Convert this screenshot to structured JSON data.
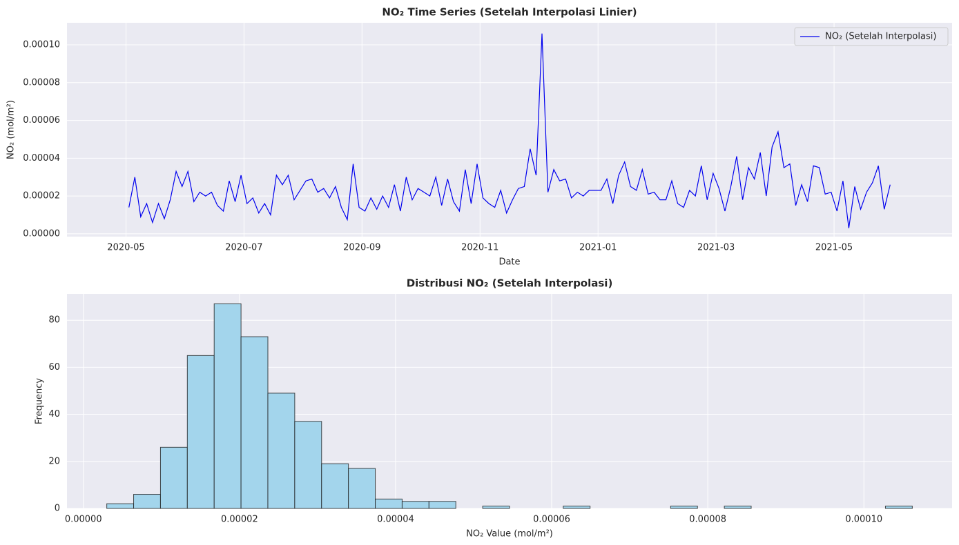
{
  "chart_data": [
    {
      "type": "line",
      "title": "NO₂ Time Series (Setelah Interpolasi Linier)",
      "xlabel": "Date",
      "ylabel": "NO₂ (mol/m²)",
      "x": [
        "2020-05",
        "2020-05",
        "2020-05",
        "2020-05",
        "2020-05",
        "2020-05",
        "2020-05",
        "2020-05",
        "2020-05",
        "2020-05",
        "2020-06",
        "2020-06",
        "2020-06",
        "2020-06",
        "2020-06",
        "2020-06",
        "2020-06",
        "2020-06",
        "2020-06",
        "2020-06",
        "2020-07",
        "2020-07",
        "2020-07",
        "2020-07",
        "2020-07",
        "2020-07",
        "2020-07",
        "2020-07",
        "2020-07",
        "2020-07",
        "2020-08",
        "2020-08",
        "2020-08",
        "2020-08",
        "2020-08",
        "2020-08",
        "2020-08",
        "2020-08",
        "2020-08",
        "2020-08",
        "2020-09",
        "2020-09",
        "2020-09",
        "2020-09",
        "2020-09",
        "2020-09",
        "2020-09",
        "2020-09",
        "2020-09",
        "2020-09",
        "2020-10",
        "2020-10",
        "2020-10",
        "2020-10",
        "2020-10",
        "2020-10",
        "2020-10",
        "2020-10",
        "2020-10",
        "2020-10",
        "2020-11",
        "2020-11",
        "2020-11",
        "2020-11",
        "2020-11",
        "2020-11",
        "2020-11",
        "2020-11",
        "2020-11",
        "2020-11",
        "2020-12",
        "2020-12",
        "2020-12",
        "2020-12",
        "2020-12",
        "2020-12",
        "2020-12",
        "2020-12",
        "2020-12",
        "2020-12",
        "2021-01",
        "2021-01",
        "2021-01",
        "2021-01",
        "2021-01",
        "2021-01",
        "2021-01",
        "2021-01",
        "2021-01",
        "2021-01",
        "2021-02",
        "2021-02",
        "2021-02",
        "2021-02",
        "2021-02",
        "2021-02",
        "2021-02",
        "2021-02",
        "2021-02",
        "2021-02",
        "2021-03",
        "2021-03",
        "2021-03",
        "2021-03",
        "2021-03",
        "2021-03",
        "2021-03",
        "2021-03",
        "2021-03",
        "2021-03",
        "2021-04",
        "2021-04",
        "2021-04",
        "2021-04",
        "2021-04",
        "2021-04",
        "2021-04",
        "2021-04",
        "2021-04",
        "2021-04",
        "2021-05",
        "2021-05",
        "2021-05",
        "2021-05",
        "2021-05",
        "2021-05",
        "2021-05",
        "2021-05",
        "2021-05",
        "2021-05"
      ],
      "series": [
        {
          "name": "NO₂ (Setelah Interpolasi)",
          "color": "#0000ee",
          "values": [
            1.4e-05,
            3e-05,
            9e-06,
            1.6e-05,
            6e-06,
            1.6e-05,
            8e-06,
            1.8e-05,
            3.3e-05,
            2.5e-05,
            3.3e-05,
            1.7e-05,
            2.2e-05,
            2e-05,
            2.2e-05,
            1.5e-05,
            1.2e-05,
            2.8e-05,
            1.7e-05,
            3.1e-05,
            1.6e-05,
            1.9e-05,
            1.1e-05,
            1.6e-05,
            1e-05,
            3.1e-05,
            2.6e-05,
            3.1e-05,
            1.8e-05,
            2.3e-05,
            2.8e-05,
            2.9e-05,
            2.2e-05,
            2.4e-05,
            1.9e-05,
            2.5e-05,
            1.4e-05,
            7.5e-06,
            3.7e-05,
            1.4e-05,
            1.2e-05,
            1.9e-05,
            1.3e-05,
            2e-05,
            1.4e-05,
            2.6e-05,
            1.2e-05,
            3e-05,
            1.8e-05,
            2.4e-05,
            2.2e-05,
            2e-05,
            3e-05,
            1.5e-05,
            2.9e-05,
            1.7e-05,
            1.2e-05,
            3.4e-05,
            1.6e-05,
            3.7e-05,
            1.9e-05,
            1.6e-05,
            1.4e-05,
            2.3e-05,
            1.1e-05,
            1.8e-05,
            2.4e-05,
            2.5e-05,
            4.5e-05,
            3.1e-05,
            0.000106,
            2.2e-05,
            3.4e-05,
            2.8e-05,
            2.9e-05,
            1.9e-05,
            2.2e-05,
            2e-05,
            2.3e-05,
            2.3e-05,
            2.3e-05,
            2.9e-05,
            1.6e-05,
            3.1e-05,
            3.8e-05,
            2.5e-05,
            2.3e-05,
            3.4e-05,
            2.1e-05,
            2.2e-05,
            1.8e-05,
            1.8e-05,
            2.8e-05,
            1.6e-05,
            1.4e-05,
            2.3e-05,
            2e-05,
            3.6e-05,
            1.8e-05,
            3.2e-05,
            2.4e-05,
            1.2e-05,
            2.5e-05,
            4.1e-05,
            1.8e-05,
            3.5e-05,
            2.9e-05,
            4.3e-05,
            2e-05,
            4.6e-05,
            5.4e-05,
            3.5e-05,
            3.7e-05,
            1.5e-05,
            2.6e-05,
            1.7e-05,
            3.6e-05,
            3.5e-05,
            2.1e-05,
            2.2e-05,
            1.2e-05,
            2.8e-05,
            3e-06,
            2.5e-05,
            1.3e-05,
            2.2e-05,
            2.7e-05,
            3.6e-05,
            1.3e-05,
            2.6e-05
          ]
        }
      ],
      "xlim": [
        "2020-04",
        "2021-07"
      ],
      "xticks": [
        "2020-05",
        "2020-07",
        "2020-09",
        "2020-11",
        "2021-01",
        "2021-03",
        "2021-05"
      ],
      "ylim": [
        -1.5e-06,
        0.0001117
      ],
      "yticks": [
        {
          "value": 0,
          "label": "0.00000"
        },
        {
          "value": 2e-05,
          "label": "0.00002"
        },
        {
          "value": 4e-05,
          "label": "0.00004"
        },
        {
          "value": 6e-05,
          "label": "0.00006"
        },
        {
          "value": 8e-05,
          "label": "0.00008"
        },
        {
          "value": 0.0001,
          "label": "0.00010"
        }
      ],
      "grid": true,
      "legend": "upper right"
    },
    {
      "type": "histogram",
      "title": "Distribusi NO₂ (Setelah Interpolasi)",
      "xlabel": "NO₂ Value (mol/m²)",
      "ylabel": "Frequency",
      "bins": [
        3e-06,
        6.44e-06,
        9.88e-06,
        1.332e-05,
        1.676e-05,
        2.02e-05,
        2.364e-05,
        2.708e-05,
        3.052e-05,
        3.396e-05,
        3.74e-05,
        4.084e-05,
        4.428e-05,
        4.772e-05,
        5.116e-05,
        5.46e-05,
        5.804e-05,
        6.148e-05,
        6.492e-05,
        6.836e-05,
        7.18e-05,
        7.524e-05,
        7.868e-05,
        8.212e-05,
        8.556e-05,
        8.9e-05,
        9.244e-05,
        9.588e-05,
        9.932e-05,
        0.00010276,
        0.0001062
      ],
      "values": [
        2,
        6,
        26,
        65,
        87,
        73,
        49,
        37,
        19,
        17,
        4,
        3,
        3,
        0,
        1,
        0,
        0,
        1,
        0,
        0,
        0,
        1,
        0,
        1,
        0,
        0,
        0,
        0,
        0,
        1
      ],
      "color": "#a3d5ec",
      "edgecolor": "#1a1a1a",
      "xlim": [
        -2.1e-06,
        0.0001113
      ],
      "xticks": [
        {
          "value": 0,
          "label": "0.00000"
        },
        {
          "value": 2e-05,
          "label": "0.00002"
        },
        {
          "value": 4e-05,
          "label": "0.00004"
        },
        {
          "value": 6e-05,
          "label": "0.00006"
        },
        {
          "value": 8e-05,
          "label": "0.00008"
        },
        {
          "value": 0.0001,
          "label": "0.00010"
        }
      ],
      "ylim": [
        0,
        91.2
      ],
      "yticks": [
        0,
        20,
        40,
        60,
        80
      ],
      "grid": true
    }
  ]
}
